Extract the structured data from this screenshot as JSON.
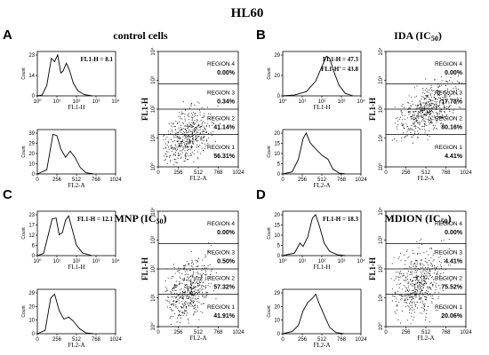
{
  "figure": {
    "title": "HL60",
    "axis": {
      "fl1h_label": "FL1-H",
      "fl2a_label": "FL2-A",
      "count_label": "Count",
      "fl2a_ticks": [
        "0",
        "256",
        "512",
        "768",
        "1024"
      ],
      "log_ticks": [
        "10⁰",
        "10¹",
        "10²",
        "10³",
        "10⁴"
      ]
    },
    "panels": [
      {
        "letter": "A",
        "condition": "control cells",
        "subscript": "",
        "stats": [
          "FL1-H = 8.1"
        ],
        "hist1_yticks": [
          "23",
          "14",
          "0"
        ],
        "hist2_yticks": [
          "39",
          "29",
          "20",
          "10",
          "0"
        ],
        "regions": [
          {
            "label": "REGION 4",
            "value": "0.00%"
          },
          {
            "label": "REGION 3",
            "value": "0.34%"
          },
          {
            "label": "REGION 2",
            "value": "41.14%"
          },
          {
            "label": "REGION 1",
            "value": "56.31%"
          }
        ]
      },
      {
        "letter": "B",
        "condition": "IDA (IC",
        "subscript": "50",
        "stats": [
          "FL1-H = 47.3",
          "FL1-H' = 43.8"
        ],
        "hist1_yticks": [
          "29",
          "20",
          "0"
        ],
        "hist2_yticks": [
          "20",
          "15",
          "10",
          "5",
          "0"
        ],
        "regions": [
          {
            "label": "REGION 4",
            "value": "0.00%"
          },
          {
            "label": "REGION 3",
            "value": "17.78%"
          },
          {
            "label": "REGION 2",
            "value": "80.16%"
          },
          {
            "label": "REGION 1",
            "value": "4.41%"
          }
        ]
      },
      {
        "letter": "C",
        "condition": "MNP (IC",
        "subscript": "50",
        "stats": [
          "FL1-H = 12.1"
        ],
        "hist1_yticks": [
          "23",
          "17",
          "12",
          "6",
          "0"
        ],
        "hist2_yticks": [
          "29",
          "20",
          "10",
          "0"
        ],
        "regions": [
          {
            "label": "REGION 4",
            "value": "0.00%"
          },
          {
            "label": "REGION 3",
            "value": "0.50%"
          },
          {
            "label": "REGION 2",
            "value": "57.32%"
          },
          {
            "label": "REGION 1",
            "value": "41.91%"
          }
        ]
      },
      {
        "letter": "D",
        "condition": "MDION (IC",
        "subscript": "50",
        "stats": [
          "FL1-H = 18.3"
        ],
        "hist1_yticks": [
          "20",
          "15",
          "10",
          "5",
          "0"
        ],
        "hist2_yticks": [
          "29",
          "20",
          "10",
          "0"
        ],
        "regions": [
          {
            "label": "REGION 4",
            "value": "0.00%"
          },
          {
            "label": "REGION 3",
            "value": "4.41%"
          },
          {
            "label": "REGION 2",
            "value": "75.52%"
          },
          {
            "label": "REGION 1",
            "value": "20.06%"
          }
        ]
      }
    ]
  }
}
